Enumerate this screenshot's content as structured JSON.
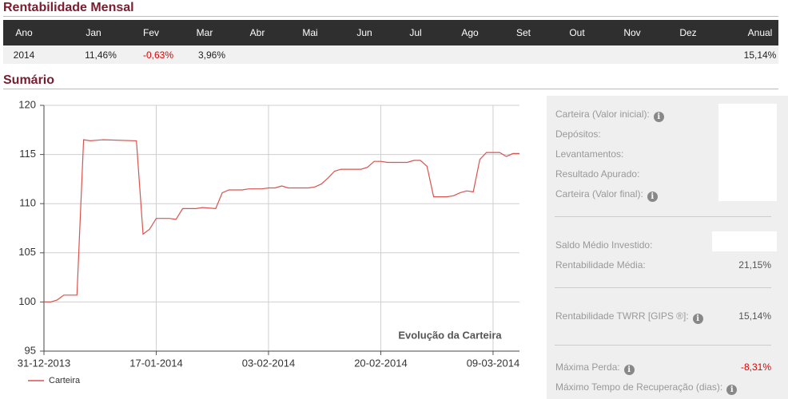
{
  "header": {
    "title": "Rentabilidade Mensal",
    "subtitle": "Sumário"
  },
  "table": {
    "columns": [
      "Ano",
      "Jan",
      "Fev",
      "Mar",
      "Abr",
      "Mai",
      "Jun",
      "Jul",
      "Ago",
      "Set",
      "Out",
      "Nov",
      "Dez",
      "Anual"
    ],
    "rows": [
      [
        "2014",
        "11,46%",
        "-0,63%",
        "3,96%",
        null,
        null,
        null,
        null,
        null,
        null,
        null,
        null,
        null,
        "15,14%"
      ]
    ]
  },
  "summary": [
    {
      "label": "Carteira (Valor inicial):"
    },
    {
      "label": "Depósitos:"
    },
    {
      "label": "Levantamentos:"
    },
    {
      "label": "Resultado Apurado:"
    },
    {
      "label": "Carteira (Valor final):"
    },
    {
      "label": "Saldo Médio Investido:"
    },
    {
      "label": "Rentabilidade Média:",
      "value": "21,15%"
    },
    {
      "label": "Rentabilidade TWRR [GIPS ®]:",
      "value": "15,14%"
    },
    {
      "label": "Máxima Perda:",
      "value": "-8,31%"
    },
    {
      "label": "Máximo Tempo de Recuperação (dias):"
    }
  ],
  "chart_data": {
    "type": "line",
    "title": "Evolução da Carteira",
    "x": [
      "31-12-2013",
      "01-01-2014",
      "02-01-2014",
      "03-01-2014",
      "05-01-2014",
      "06-01-2014",
      "07-01-2014",
      "09-01-2014",
      "14-01-2014",
      "15-01-2014",
      "16-01-2014",
      "17-01-2014",
      "19-01-2014",
      "20-01-2014",
      "21-01-2014",
      "23-01-2014",
      "24-01-2014",
      "26-01-2014",
      "27-01-2014",
      "28-01-2014",
      "30-01-2014",
      "31-01-2014",
      "02-02-2014",
      "03-02-2014",
      "04-02-2014",
      "05-02-2014",
      "06-02-2014",
      "09-02-2014",
      "10-02-2014",
      "11-02-2014",
      "12-02-2014",
      "13-02-2014",
      "14-02-2014",
      "17-02-2014",
      "18-02-2014",
      "19-02-2014",
      "20-02-2014",
      "21-02-2014",
      "24-02-2014",
      "25-02-2014",
      "26-02-2014",
      "27-02-2014",
      "28-02-2014",
      "02-03-2014",
      "03-03-2014",
      "04-03-2014",
      "05-03-2014",
      "06-03-2014",
      "07-03-2014",
      "08-03-2014",
      "10-03-2014",
      "11-03-2014",
      "12-03-2014",
      "13-03-2014"
    ],
    "series": [
      {
        "name": "Carteira",
        "color": "#d9534f",
        "values": [
          100.0,
          100.0,
          100.2,
          100.7,
          100.7,
          116.5,
          116.4,
          116.5,
          116.4,
          106.9,
          107.4,
          108.5,
          108.5,
          108.4,
          109.5,
          109.5,
          109.6,
          109.5,
          111.1,
          111.4,
          111.4,
          111.5,
          111.5,
          111.6,
          111.6,
          111.8,
          111.6,
          111.6,
          111.7,
          112.0,
          112.6,
          113.3,
          113.5,
          113.5,
          113.7,
          114.3,
          114.3,
          114.2,
          114.2,
          114.4,
          114.4,
          113.8,
          110.7,
          110.7,
          110.8,
          111.1,
          111.3,
          111.2,
          114.5,
          115.2,
          115.2,
          114.8,
          115.1,
          115.1
        ]
      }
    ],
    "xlim": [
      "31-12-2013",
      "13-03-2014"
    ],
    "xticks": [
      "31-12-2013",
      "17-01-2014",
      "03-02-2014",
      "20-02-2014",
      "09-03-2014"
    ],
    "ylim": [
      95,
      120
    ],
    "yticks": [
      95,
      100,
      105,
      110,
      115,
      120
    ],
    "grid": true,
    "legend": "bottom-left"
  }
}
